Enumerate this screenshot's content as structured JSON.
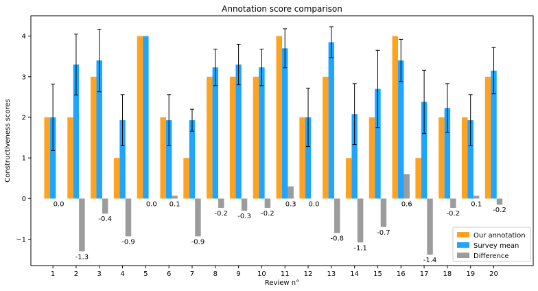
{
  "chart_data": {
    "type": "bar",
    "title": "Annotation score comparison",
    "xlabel": "Review n°",
    "ylabel": "Constructiveness scores",
    "categories": [
      "1",
      "2",
      "3",
      "4",
      "5",
      "6",
      "7",
      "8",
      "9",
      "10",
      "11",
      "12",
      "13",
      "14",
      "15",
      "16",
      "17",
      "18",
      "19",
      "20"
    ],
    "ylim": [
      -1.65,
      4.5
    ],
    "yticks": [
      -1,
      0,
      1,
      2,
      3,
      4
    ],
    "ytick_labels": [
      "−1",
      "0",
      "1",
      "2",
      "3",
      "4"
    ],
    "grid": false,
    "legend_position": "lower-right",
    "series": [
      {
        "name": "Our annotation",
        "color": "#ffa21f",
        "values": [
          2,
          2,
          3,
          1,
          4,
          2,
          1,
          3,
          3,
          3,
          4,
          2,
          3,
          1,
          2,
          4,
          1,
          2,
          2,
          3
        ]
      },
      {
        "name": "Survey mean",
        "color": "#1fa5ff",
        "values": [
          2.0,
          3.3,
          3.4,
          1.93,
          4.0,
          1.93,
          1.93,
          3.23,
          3.3,
          3.23,
          3.7,
          2.0,
          3.85,
          2.08,
          2.7,
          3.4,
          2.38,
          2.23,
          1.93,
          3.15
        ],
        "errors": [
          0.82,
          0.75,
          0.77,
          0.63,
          0.0,
          0.63,
          0.27,
          0.45,
          0.5,
          0.45,
          0.48,
          0.72,
          0.38,
          0.75,
          0.95,
          0.52,
          0.78,
          0.6,
          0.63,
          0.57
        ]
      },
      {
        "name": "Difference",
        "color": "#9c9c9c",
        "values": [
          0.0,
          -1.3,
          -0.37,
          -0.93,
          0.0,
          0.07,
          -0.93,
          -0.23,
          -0.3,
          -0.23,
          0.3,
          0.0,
          -0.85,
          -1.08,
          -0.7,
          0.6,
          -1.38,
          -0.23,
          0.07,
          -0.15
        ],
        "labels": [
          "0.0",
          "-1.3",
          "-0.4",
          "-0.9",
          "0.0",
          "0.1",
          "-0.9",
          "-0.2",
          "-0.3",
          "-0.2",
          "0.3",
          "0.0",
          "-0.8",
          "-1.1",
          "-0.7",
          "0.6",
          "-1.4",
          "-0.2",
          "0.1",
          "-0.2"
        ]
      }
    ]
  }
}
